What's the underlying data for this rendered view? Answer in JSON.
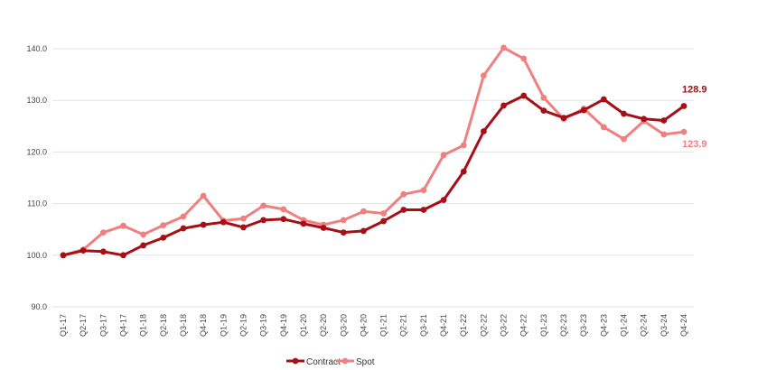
{
  "chart_data": {
    "type": "line",
    "title": "",
    "xlabel": "",
    "ylabel": "",
    "ylim": [
      90,
      140
    ],
    "y_ticks": [
      90.0,
      100.0,
      110.0,
      120.0,
      130.0,
      140.0
    ],
    "y_tick_format": "one-decimal",
    "grid": "horizontal",
    "legend_position": "bottom-center",
    "categories": [
      "Q1-17",
      "Q2-17",
      "Q3-17",
      "Q4-17",
      "Q1-18",
      "Q2-18",
      "Q3-18",
      "Q4-18",
      "Q1-19",
      "Q2-19",
      "Q3-19",
      "Q4-19",
      "Q1-20",
      "Q2-20",
      "Q3-20",
      "Q4-20",
      "Q1-21",
      "Q2-21",
      "Q3-21",
      "Q4-21",
      "Q1-22",
      "Q2-22",
      "Q3-22",
      "Q4-22",
      "Q1-23",
      "Q2-23",
      "Q3-23",
      "Q4-23",
      "Q1-24",
      "Q2-24",
      "Q3-24",
      "Q4-24"
    ],
    "series": [
      {
        "name": "Contract",
        "color": "#a50f15",
        "values": [
          100.0,
          100.9,
          100.7,
          100.0,
          101.9,
          103.4,
          105.2,
          105.9,
          106.4,
          105.4,
          106.8,
          107.0,
          106.1,
          105.3,
          104.4,
          104.7,
          106.6,
          108.8,
          108.8,
          110.7,
          116.2,
          124.0,
          129.0,
          130.9,
          128.0,
          126.6,
          128.1,
          130.2,
          127.4,
          126.4,
          126.1,
          128.9
        ],
        "end_label": "128.9"
      },
      {
        "name": "Spot",
        "color": "#f08080",
        "values": [
          100.0,
          101.1,
          104.4,
          105.7,
          104.0,
          105.8,
          107.5,
          111.5,
          106.7,
          107.1,
          109.6,
          108.9,
          106.8,
          105.9,
          106.8,
          108.5,
          108.1,
          111.8,
          112.6,
          119.4,
          121.3,
          134.8,
          140.2,
          138.1,
          130.5,
          126.4,
          128.4,
          124.8,
          122.5,
          126.0,
          123.4,
          123.9
        ],
        "end_label": "123.9"
      }
    ]
  }
}
